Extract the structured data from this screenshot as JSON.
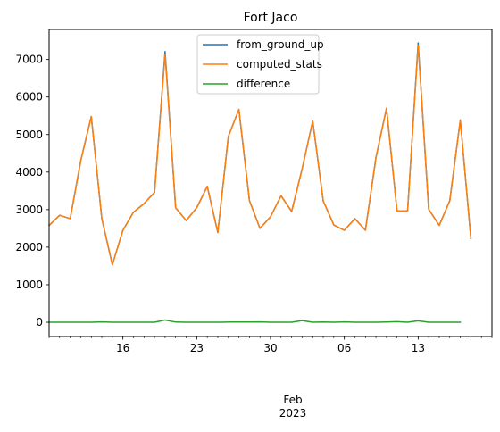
{
  "chart_data": {
    "type": "line",
    "title": "Fort Jaco",
    "xlabel": "",
    "ylabel": "",
    "x_start": "2023-01-09",
    "x_end": "2023-02-20",
    "x_ticks": [
      {
        "date": "2023-01-16",
        "label": "16"
      },
      {
        "date": "2023-01-23",
        "label": "23"
      },
      {
        "date": "2023-01-30",
        "label": "30"
      },
      {
        "date": "2023-02-06",
        "label": "06"
      },
      {
        "date": "2023-02-13",
        "label": "13"
      }
    ],
    "x_secondary_label": [
      "Feb",
      "2023"
    ],
    "ylim": [
      -380,
      7800
    ],
    "y_ticks": [
      0,
      1000,
      2000,
      3000,
      4000,
      5000,
      6000,
      7000
    ],
    "grid": false,
    "legend_position": "upper center",
    "series": [
      {
        "name": "from_ground_up",
        "color": "#1f77b4",
        "points": [
          [
            "2023-01-09",
            2580
          ],
          [
            "2023-01-10",
            2850
          ],
          [
            "2023-01-11",
            2760
          ],
          [
            "2023-01-12",
            4300
          ],
          [
            "2023-01-13",
            5480
          ],
          [
            "2023-01-14",
            2760
          ],
          [
            "2023-01-15",
            1530
          ],
          [
            "2023-01-16",
            2450
          ],
          [
            "2023-01-17",
            2930
          ],
          [
            "2023-01-18",
            3160
          ],
          [
            "2023-01-19",
            3460
          ],
          [
            "2023-01-20",
            7210
          ],
          [
            "2023-01-21",
            3050
          ],
          [
            "2023-01-22",
            2710
          ],
          [
            "2023-01-23",
            3050
          ],
          [
            "2023-01-24",
            3620
          ],
          [
            "2023-01-25",
            2390
          ],
          [
            "2023-01-26",
            4950
          ],
          [
            "2023-01-27",
            5670
          ],
          [
            "2023-01-28",
            3240
          ],
          [
            "2023-01-29",
            2500
          ],
          [
            "2023-01-30",
            2810
          ],
          [
            "2023-01-31",
            3370
          ],
          [
            "2023-02-01",
            2950
          ],
          [
            "2023-02-02",
            4090
          ],
          [
            "2023-02-03",
            5360
          ],
          [
            "2023-02-04",
            3230
          ],
          [
            "2023-02-05",
            2590
          ],
          [
            "2023-02-06",
            2450
          ],
          [
            "2023-02-07",
            2760
          ],
          [
            "2023-02-08",
            2450
          ],
          [
            "2023-02-09",
            4390
          ],
          [
            "2023-02-10",
            5700
          ],
          [
            "2023-02-11",
            2960
          ],
          [
            "2023-02-12",
            2970
          ],
          [
            "2023-02-13",
            7440
          ],
          [
            "2023-02-14",
            3010
          ],
          [
            "2023-02-15",
            2580
          ],
          [
            "2023-02-16",
            3240
          ],
          [
            "2023-02-17",
            5390
          ],
          [
            "2023-02-18",
            2230
          ]
        ]
      },
      {
        "name": "computed_stats",
        "color": "#ff7f0e",
        "points": [
          [
            "2023-01-09",
            2580
          ],
          [
            "2023-01-10",
            2850
          ],
          [
            "2023-01-11",
            2760
          ],
          [
            "2023-01-12",
            4300
          ],
          [
            "2023-01-13",
            5480
          ],
          [
            "2023-01-14",
            2760
          ],
          [
            "2023-01-15",
            1530
          ],
          [
            "2023-01-16",
            2450
          ],
          [
            "2023-01-17",
            2930
          ],
          [
            "2023-01-18",
            3160
          ],
          [
            "2023-01-19",
            3460
          ],
          [
            "2023-01-20",
            7130
          ],
          [
            "2023-01-21",
            3050
          ],
          [
            "2023-01-22",
            2710
          ],
          [
            "2023-01-23",
            3050
          ],
          [
            "2023-01-24",
            3620
          ],
          [
            "2023-01-25",
            2390
          ],
          [
            "2023-01-26",
            4950
          ],
          [
            "2023-01-27",
            5670
          ],
          [
            "2023-01-28",
            3240
          ],
          [
            "2023-01-29",
            2500
          ],
          [
            "2023-01-30",
            2810
          ],
          [
            "2023-01-31",
            3370
          ],
          [
            "2023-02-01",
            2950
          ],
          [
            "2023-02-02",
            4090
          ],
          [
            "2023-02-03",
            5360
          ],
          [
            "2023-02-04",
            3230
          ],
          [
            "2023-02-05",
            2590
          ],
          [
            "2023-02-06",
            2450
          ],
          [
            "2023-02-07",
            2760
          ],
          [
            "2023-02-08",
            2450
          ],
          [
            "2023-02-09",
            4390
          ],
          [
            "2023-02-10",
            5700
          ],
          [
            "2023-02-11",
            2960
          ],
          [
            "2023-02-12",
            2970
          ],
          [
            "2023-02-13",
            7380
          ],
          [
            "2023-02-14",
            3010
          ],
          [
            "2023-02-15",
            2580
          ],
          [
            "2023-02-16",
            3240
          ],
          [
            "2023-02-17",
            5390
          ],
          [
            "2023-02-18",
            2230
          ]
        ]
      },
      {
        "name": "difference",
        "color": "#2ca02c",
        "points": [
          [
            "2023-01-09",
            0
          ],
          [
            "2023-01-10",
            0
          ],
          [
            "2023-01-11",
            0
          ],
          [
            "2023-01-12",
            0
          ],
          [
            "2023-01-13",
            0
          ],
          [
            "2023-01-14",
            8
          ],
          [
            "2023-01-15",
            0
          ],
          [
            "2023-01-16",
            0
          ],
          [
            "2023-01-17",
            0
          ],
          [
            "2023-01-18",
            0
          ],
          [
            "2023-01-19",
            0
          ],
          [
            "2023-01-20",
            60
          ],
          [
            "2023-01-21",
            5
          ],
          [
            "2023-01-22",
            0
          ],
          [
            "2023-01-23",
            0
          ],
          [
            "2023-01-24",
            0
          ],
          [
            "2023-01-25",
            0
          ],
          [
            "2023-01-26",
            5
          ],
          [
            "2023-01-27",
            5
          ],
          [
            "2023-01-28",
            5
          ],
          [
            "2023-01-29",
            10
          ],
          [
            "2023-01-30",
            0
          ],
          [
            "2023-01-31",
            0
          ],
          [
            "2023-02-01",
            0
          ],
          [
            "2023-02-02",
            45
          ],
          [
            "2023-02-03",
            0
          ],
          [
            "2023-02-04",
            5
          ],
          [
            "2023-02-05",
            0
          ],
          [
            "2023-02-06",
            8
          ],
          [
            "2023-02-07",
            0
          ],
          [
            "2023-02-08",
            0
          ],
          [
            "2023-02-09",
            0
          ],
          [
            "2023-02-10",
            5
          ],
          [
            "2023-02-11",
            15
          ],
          [
            "2023-02-12",
            0
          ],
          [
            "2023-02-13",
            40
          ],
          [
            "2023-02-14",
            0
          ],
          [
            "2023-02-15",
            0
          ],
          [
            "2023-02-16",
            0
          ],
          [
            "2023-02-17",
            0
          ]
        ]
      }
    ]
  }
}
